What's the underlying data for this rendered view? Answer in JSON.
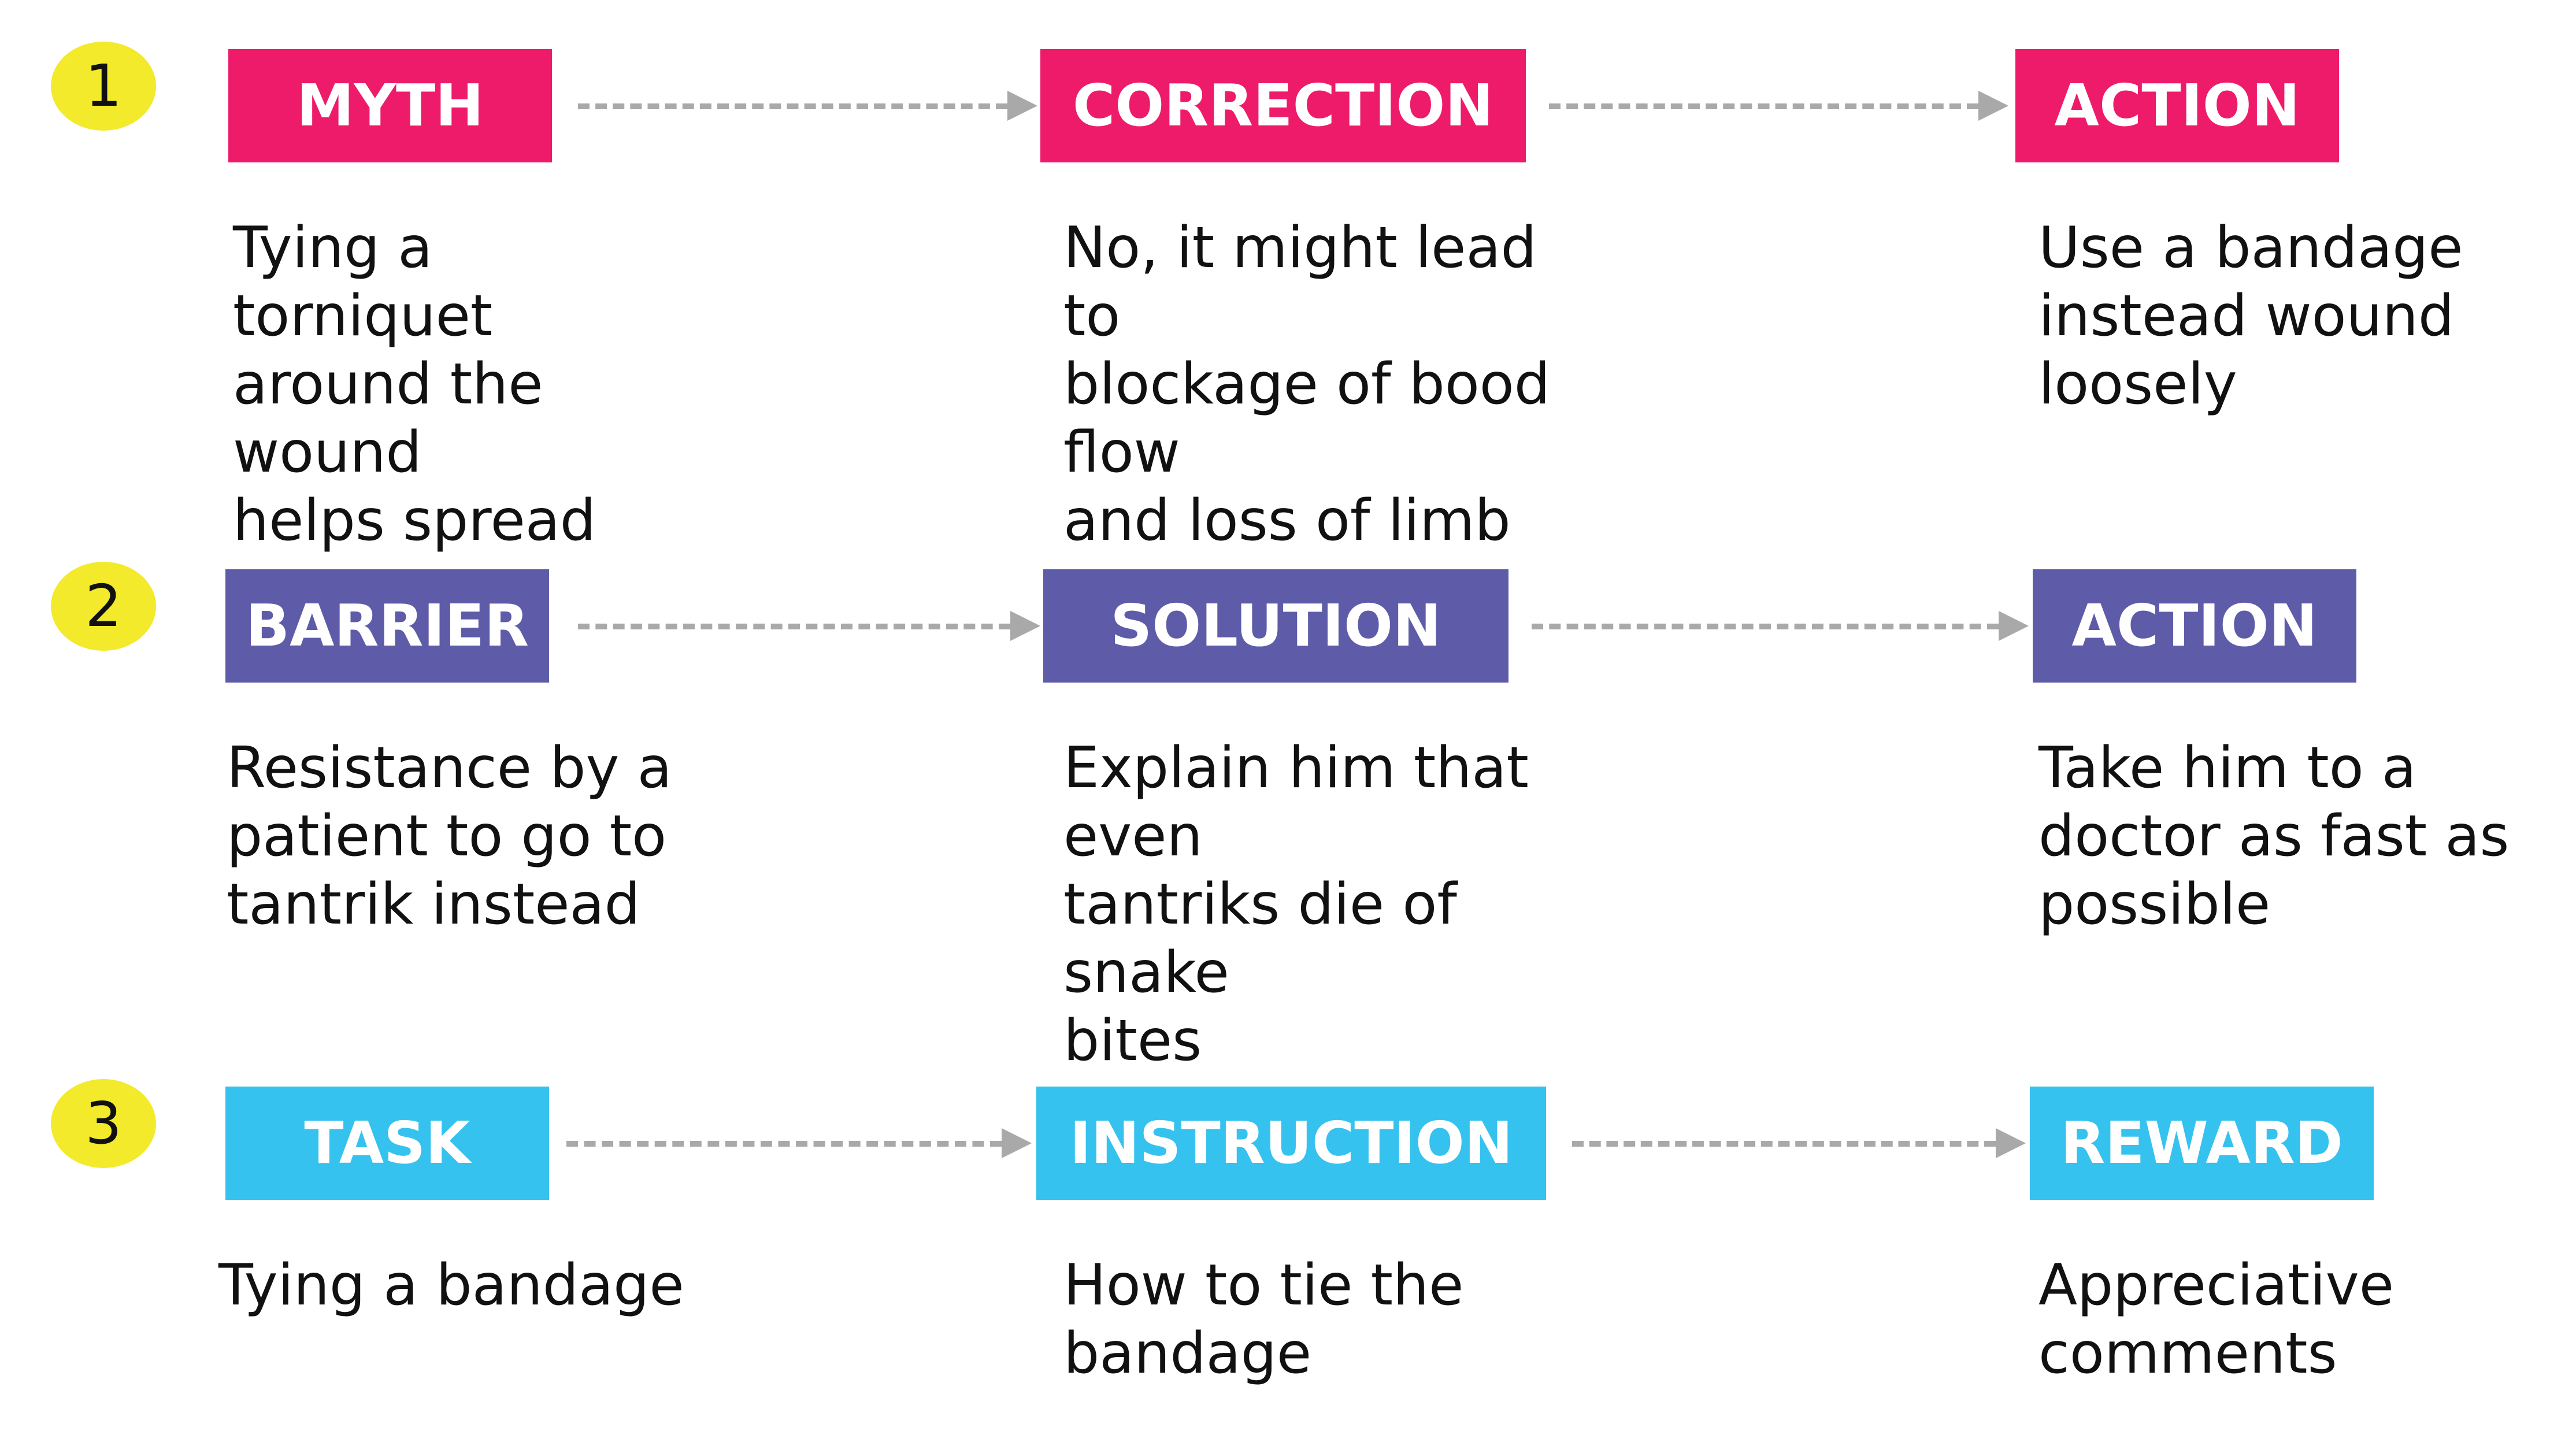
{
  "colors": {
    "pink": "#ee1b6a",
    "purple": "#5e5ca8",
    "cyan": "#35c2ee",
    "badge": "#f2ea2b",
    "arrow": "#a9a9a9"
  },
  "rows": [
    {
      "number": "1",
      "color": "#ee1b6a",
      "stages": [
        {
          "label": "MYTH",
          "text": "Tying a torniquet\naround the wound\nhelps spread venom"
        },
        {
          "label": "CORRECTION",
          "text": "No, it might lead to\nblockage of bood flow\nand loss of limb"
        },
        {
          "label": "ACTION",
          "text": "Use a bandage\ninstead wound\nloosely"
        }
      ]
    },
    {
      "number": "2",
      "color": "#5e5ca8",
      "stages": [
        {
          "label": "BARRIER",
          "text": "Resistance by a\npatient to go to\ntantrik instead"
        },
        {
          "label": "SOLUTION",
          "text": "Explain him that even\ntantriks die of snake\nbites"
        },
        {
          "label": "ACTION",
          "text": "Take him to a\ndoctor as fast as\npossible"
        }
      ]
    },
    {
      "number": "3",
      "color": "#35c2ee",
      "stages": [
        {
          "label": "TASK",
          "text": "Tying a bandage"
        },
        {
          "label": "INSTRUCTION",
          "text": "How to tie the\nbandage"
        },
        {
          "label": "REWARD",
          "text": "Appreciative\ncomments"
        }
      ]
    }
  ]
}
